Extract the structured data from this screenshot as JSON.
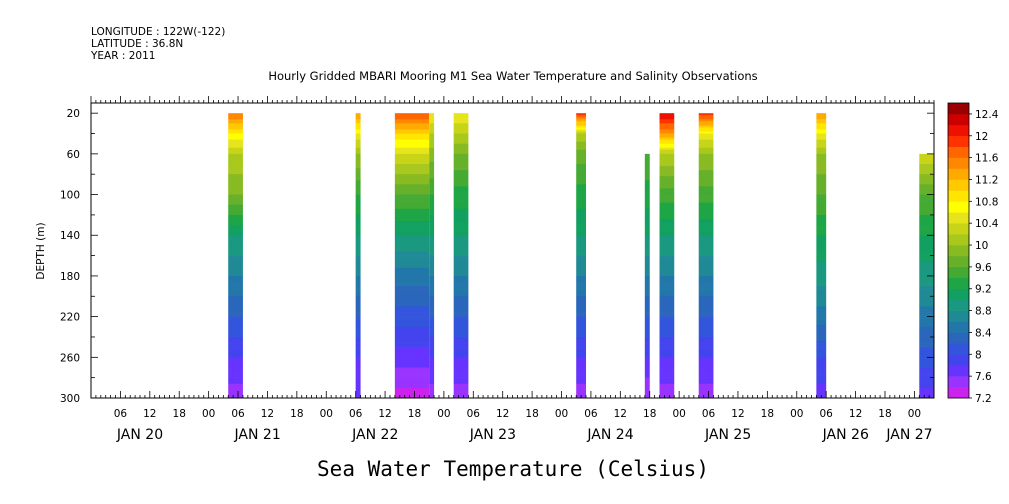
{
  "header": {
    "longitude": "LONGITUDE : 122W(-122)",
    "latitude": "LATITUDE : 36.8N",
    "year": "YEAR : 2011"
  },
  "chart_data": {
    "type": "heatmap",
    "title": "Hourly Gridded MBARI Mooring M1 Sea Water Temperature and Salinity Observations",
    "ylabel": "DEPTH (m)",
    "colorbar_label": "Sea Water Temperature (Celsius)",
    "y_range": [
      300,
      10
    ],
    "y_ticks": [
      20,
      60,
      100,
      140,
      180,
      220,
      260,
      300
    ],
    "x_range_hours": [
      0,
      172
    ],
    "x_hour_ticks": [
      {
        "h": 6,
        "label": "06"
      },
      {
        "h": 12,
        "label": "12"
      },
      {
        "h": 18,
        "label": "18"
      },
      {
        "h": 24,
        "label": "00"
      },
      {
        "h": 30,
        "label": "06"
      },
      {
        "h": 36,
        "label": "12"
      },
      {
        "h": 42,
        "label": "18"
      },
      {
        "h": 48,
        "label": "00"
      },
      {
        "h": 54,
        "label": "06"
      },
      {
        "h": 60,
        "label": "12"
      },
      {
        "h": 66,
        "label": "18"
      },
      {
        "h": 72,
        "label": "00"
      },
      {
        "h": 78,
        "label": "06"
      },
      {
        "h": 84,
        "label": "12"
      },
      {
        "h": 90,
        "label": "18"
      },
      {
        "h": 96,
        "label": "00"
      },
      {
        "h": 102,
        "label": "06"
      },
      {
        "h": 108,
        "label": "12"
      },
      {
        "h": 114,
        "label": "18"
      },
      {
        "h": 120,
        "label": "00"
      },
      {
        "h": 126,
        "label": "06"
      },
      {
        "h": 132,
        "label": "12"
      },
      {
        "h": 138,
        "label": "18"
      },
      {
        "h": 144,
        "label": "00"
      },
      {
        "h": 150,
        "label": "06"
      },
      {
        "h": 156,
        "label": "12"
      },
      {
        "h": 162,
        "label": "18"
      },
      {
        "h": 168,
        "label": "00"
      }
    ],
    "date_labels": [
      {
        "h": 10,
        "label": "JAN 20"
      },
      {
        "h": 34,
        "label": "JAN 21"
      },
      {
        "h": 58,
        "label": "JAN 22"
      },
      {
        "h": 82,
        "label": "JAN 23"
      },
      {
        "h": 106,
        "label": "JAN 24"
      },
      {
        "h": 130,
        "label": "JAN 25"
      },
      {
        "h": 154,
        "label": "JAN 26"
      },
      {
        "h": 167,
        "label": "JAN 27"
      }
    ],
    "colorbar_levels": [
      7.2,
      7.4,
      7.6,
      7.8,
      8.0,
      8.2,
      8.4,
      8.6,
      8.8,
      9.0,
      9.2,
      9.4,
      9.6,
      9.8,
      10.0,
      10.2,
      10.4,
      10.6,
      10.8,
      11.0,
      11.2,
      11.4,
      11.6,
      11.8,
      12.0,
      12.2,
      12.4,
      12.6
    ],
    "colorbar_labels": [
      "7.2",
      "7.6",
      "8",
      "8.4",
      "8.8",
      "9.2",
      "9.6",
      "10",
      "10.4",
      "10.8",
      "11.2",
      "11.6",
      "12",
      "12.4"
    ],
    "colors": [
      "#cc22ee",
      "#9933ff",
      "#6633ff",
      "#4444ee",
      "#3355dd",
      "#2a66bb",
      "#2277aa",
      "#1f8a95",
      "#1a9980",
      "#12a060",
      "#1ea646",
      "#44aa33",
      "#66b02a",
      "#88ba22",
      "#a8c81c",
      "#c8d418",
      "#e6e41a",
      "#ffff00",
      "#ffe500",
      "#ffc800",
      "#ffaa00",
      "#ff8800",
      "#ff6600",
      "#ff3300",
      "#ee1100",
      "#cc0000",
      "#990000"
    ],
    "columns": [
      {
        "start": 28,
        "end": 31,
        "profile": [
          [
            20,
            11.6
          ],
          [
            40,
            10.8
          ],
          [
            60,
            10.2
          ],
          [
            100,
            9.8
          ],
          [
            140,
            9.0
          ],
          [
            180,
            8.6
          ],
          [
            220,
            8.2
          ],
          [
            260,
            7.8
          ],
          [
            300,
            7.5
          ]
        ]
      },
      {
        "start": 54,
        "end": 55,
        "profile": [
          [
            20,
            11.4
          ],
          [
            40,
            10.6
          ],
          [
            60,
            10.0
          ],
          [
            100,
            9.4
          ],
          [
            140,
            9.0
          ],
          [
            180,
            8.6
          ],
          [
            220,
            8.2
          ],
          [
            260,
            7.8
          ],
          [
            300,
            7.6
          ]
        ]
      },
      {
        "start": 62,
        "end": 69,
        "profile": [
          [
            20,
            11.8
          ],
          [
            40,
            11.0
          ],
          [
            60,
            10.4
          ],
          [
            100,
            9.6
          ],
          [
            140,
            9.0
          ],
          [
            180,
            8.5
          ],
          [
            220,
            8.1
          ],
          [
            260,
            7.7
          ],
          [
            300,
            7.3
          ]
        ]
      },
      {
        "start": 69,
        "end": 70,
        "profile": [
          [
            20,
            10.6
          ],
          [
            40,
            10.2
          ],
          [
            60,
            9.9
          ],
          [
            100,
            9.4
          ],
          [
            140,
            9.0
          ],
          [
            180,
            8.6
          ],
          [
            220,
            8.2
          ],
          [
            260,
            7.8
          ],
          [
            300,
            7.5
          ]
        ]
      },
      {
        "start": 74,
        "end": 77,
        "profile": [
          [
            20,
            10.6
          ],
          [
            40,
            10.2
          ],
          [
            60,
            9.8
          ],
          [
            100,
            9.3
          ],
          [
            140,
            9.0
          ],
          [
            180,
            8.6
          ],
          [
            220,
            8.2
          ],
          [
            260,
            7.8
          ],
          [
            300,
            7.5
          ]
        ]
      },
      {
        "start": 99,
        "end": 101,
        "profile": [
          [
            20,
            12.0
          ],
          [
            40,
            10.2
          ],
          [
            60,
            9.7
          ],
          [
            100,
            9.3
          ],
          [
            140,
            9.0
          ],
          [
            180,
            8.6
          ],
          [
            220,
            8.2
          ],
          [
            260,
            7.8
          ],
          [
            300,
            7.5
          ]
        ]
      },
      {
        "start": 113,
        "end": 114,
        "top": 60,
        "profile": [
          [
            60,
            9.6
          ],
          [
            100,
            9.3
          ],
          [
            140,
            9.0
          ],
          [
            180,
            8.6
          ],
          [
            220,
            8.2
          ],
          [
            260,
            7.8
          ],
          [
            300,
            7.4
          ]
        ]
      },
      {
        "start": 116,
        "end": 119,
        "profile": [
          [
            20,
            12.2
          ],
          [
            40,
            11.4
          ],
          [
            60,
            10.2
          ],
          [
            100,
            9.5
          ],
          [
            140,
            9.0
          ],
          [
            180,
            8.6
          ],
          [
            220,
            8.2
          ],
          [
            260,
            7.8
          ],
          [
            300,
            7.5
          ]
        ]
      },
      {
        "start": 124,
        "end": 127,
        "profile": [
          [
            20,
            12.0
          ],
          [
            40,
            10.6
          ],
          [
            60,
            10.0
          ],
          [
            100,
            9.5
          ],
          [
            140,
            9.0
          ],
          [
            180,
            8.6
          ],
          [
            220,
            8.2
          ],
          [
            260,
            7.8
          ],
          [
            300,
            7.5
          ]
        ]
      },
      {
        "start": 148,
        "end": 150,
        "profile": [
          [
            20,
            11.4
          ],
          [
            40,
            10.6
          ],
          [
            60,
            10.0
          ],
          [
            100,
            9.6
          ],
          [
            140,
            9.2
          ],
          [
            180,
            8.9
          ],
          [
            220,
            8.5
          ],
          [
            260,
            8.0
          ],
          [
            300,
            7.7
          ]
        ]
      },
      {
        "start": 169,
        "end": 172,
        "top": 60,
        "profile": [
          [
            60,
            10.4
          ],
          [
            100,
            9.6
          ],
          [
            140,
            9.2
          ],
          [
            180,
            8.9
          ],
          [
            220,
            8.5
          ],
          [
            260,
            8.1
          ],
          [
            300,
            7.7
          ]
        ]
      }
    ]
  }
}
